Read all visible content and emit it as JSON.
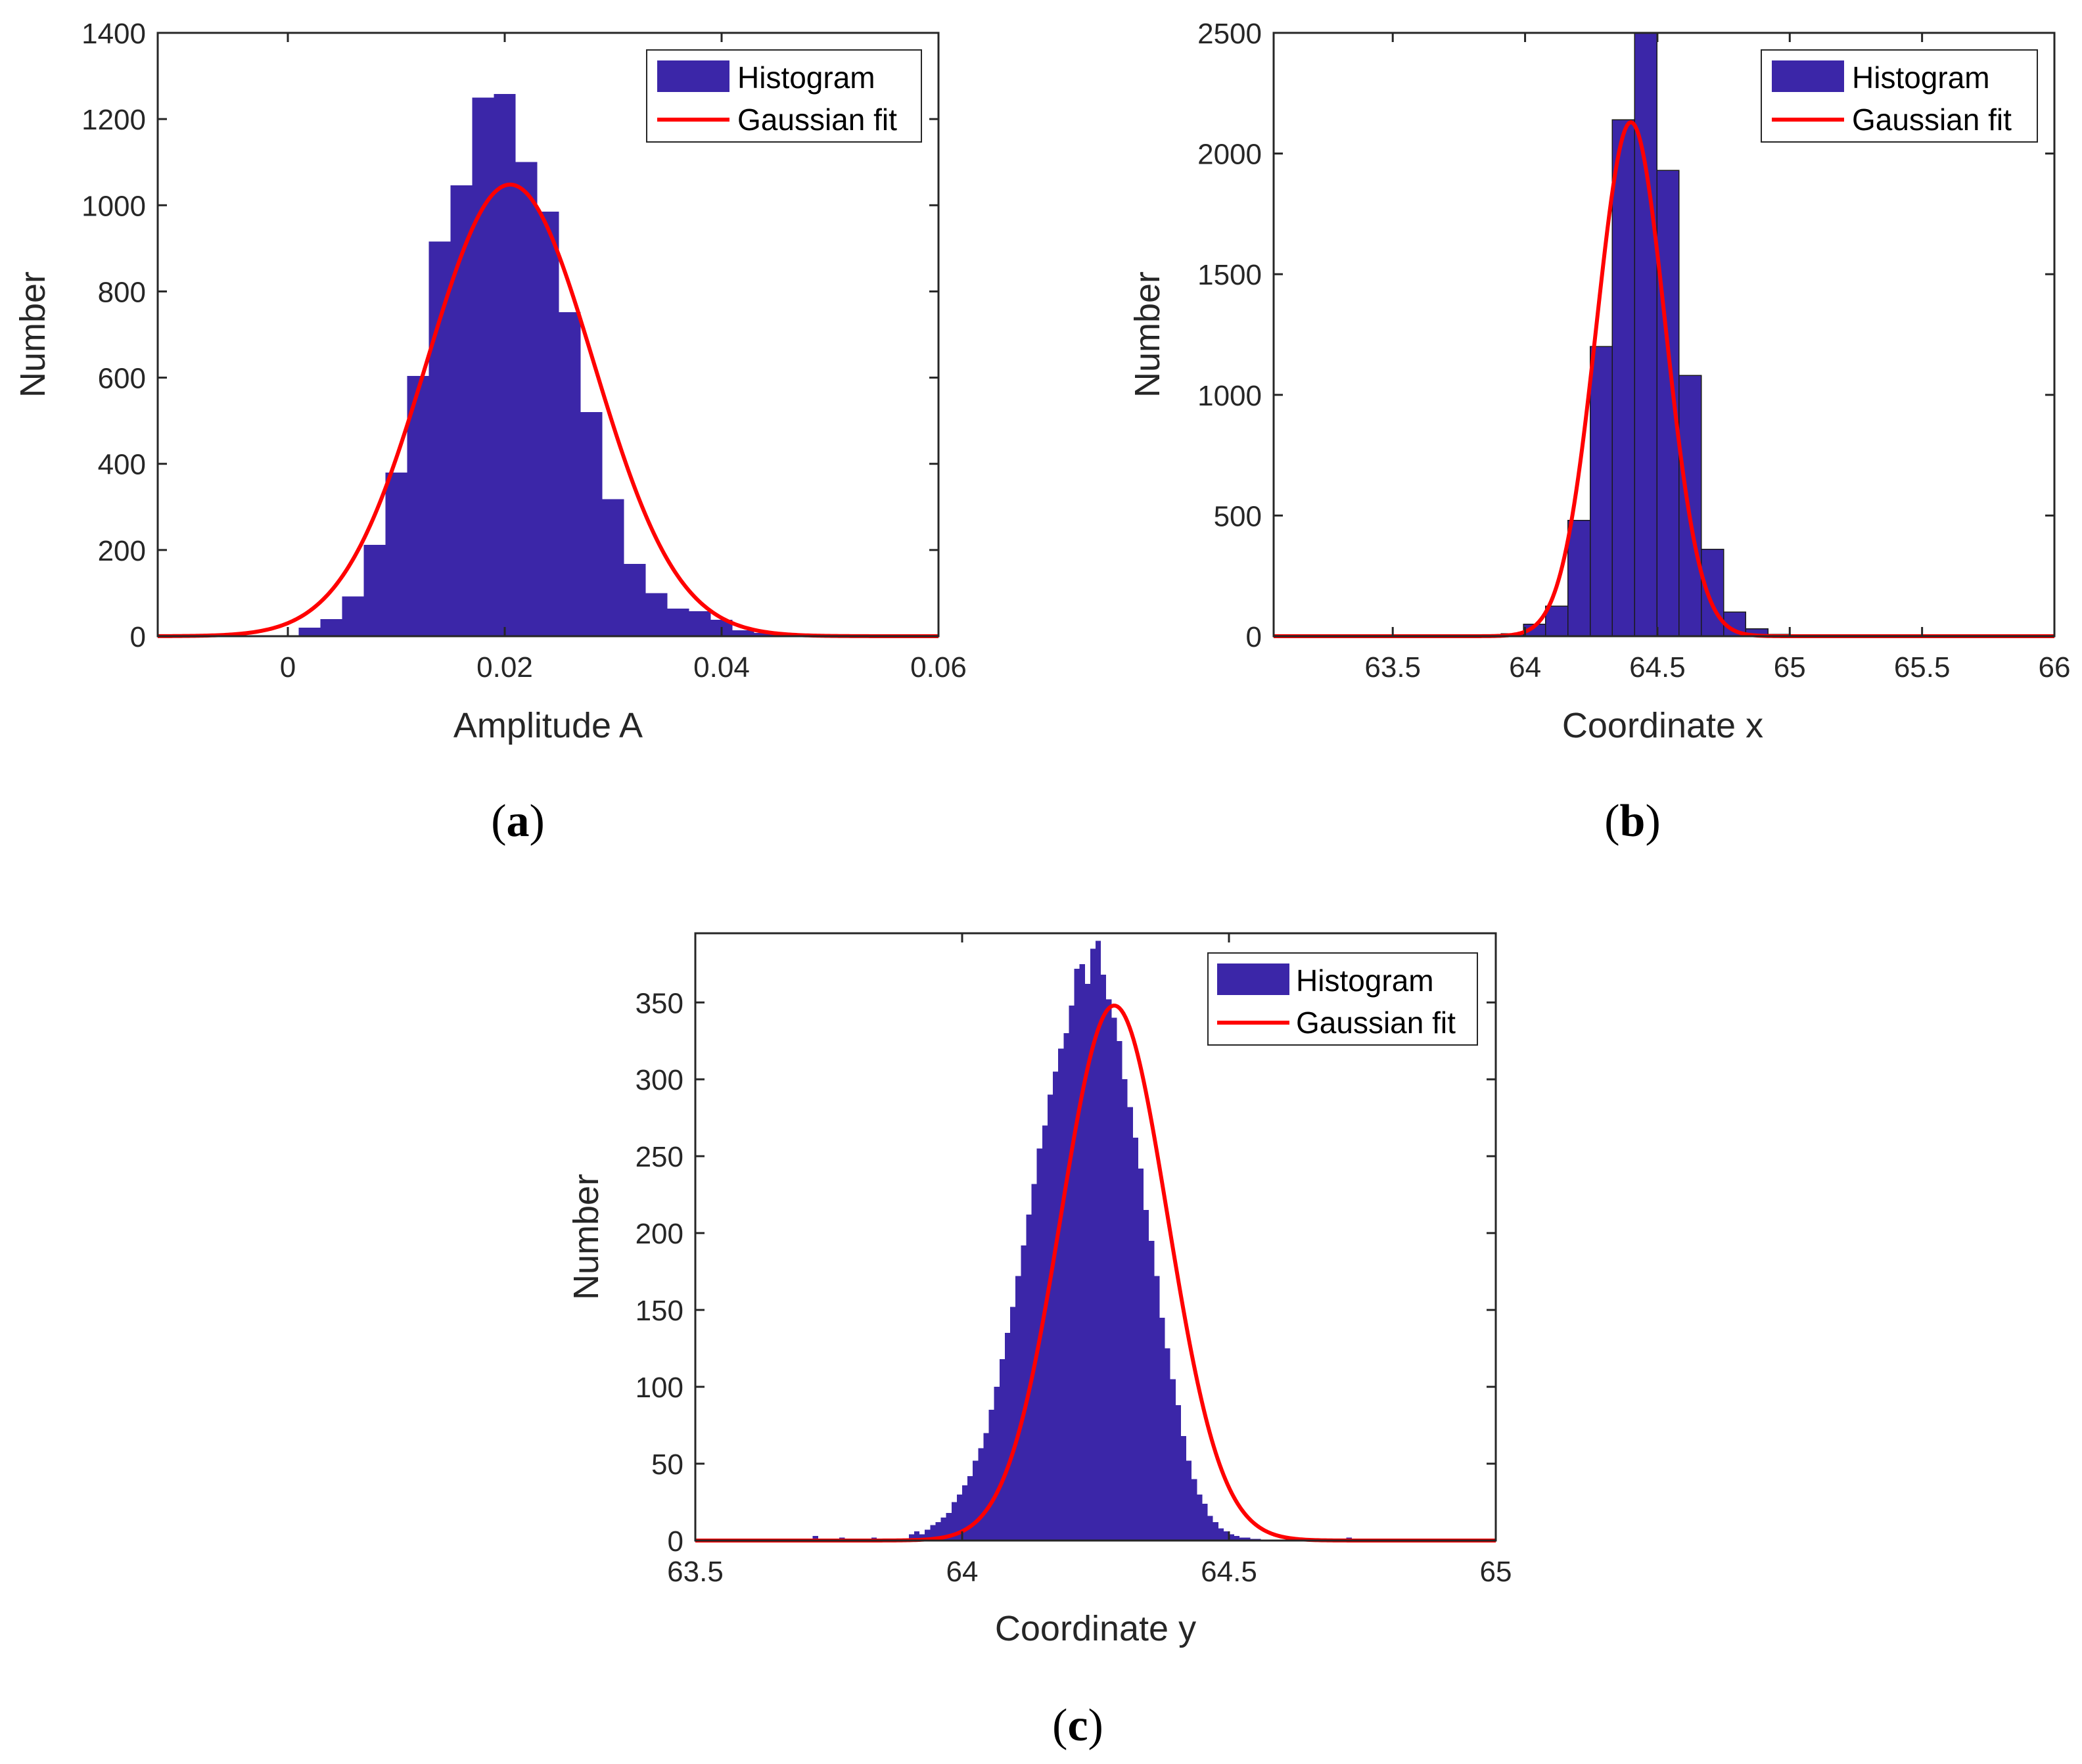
{
  "colors": {
    "histogram": "#3B26A8",
    "fit": "#FF0000",
    "axis": "#262626"
  },
  "chart_data": [
    {
      "id": "a",
      "type": "histogram",
      "caption_letter": "a",
      "xlabel": "Amplitude A",
      "ylabel": "Number",
      "xlim": [
        -0.012,
        0.06
      ],
      "ylim": [
        0,
        1400
      ],
      "xticks": [
        0,
        0.02,
        0.04,
        0.06
      ],
      "xtick_labels": [
        "0",
        "0.02",
        "0.04",
        "0.06"
      ],
      "yticks": [
        0,
        200,
        400,
        600,
        800,
        1000,
        1200,
        1400
      ],
      "ytick_labels": [
        "0",
        "200",
        "400",
        "600",
        "800",
        "1000",
        "1200",
        "1400"
      ],
      "legend": {
        "histogram": "Histogram",
        "fit": "Gaussian fit",
        "position": "top-right"
      },
      "bin_start": 0.001,
      "bin_width": 0.002,
      "counts": [
        20,
        40,
        92,
        212,
        380,
        604,
        916,
        1046,
        1250,
        1258,
        1100,
        985,
        752,
        520,
        318,
        168,
        100,
        64,
        58,
        38,
        14,
        8,
        3,
        2
      ],
      "fit": {
        "amplitude": 1048,
        "mean": 0.0205,
        "sigma": 0.0077
      }
    },
    {
      "id": "b",
      "type": "histogram",
      "caption_letter": "b",
      "xlabel": "Coordinate x",
      "ylabel": "Number",
      "xlim": [
        63.05,
        66
      ],
      "ylim": [
        0,
        2500
      ],
      "xticks": [
        63.5,
        64,
        64.5,
        65,
        65.5,
        66
      ],
      "xtick_labels": [
        "63.5",
        "64",
        "64.5",
        "65",
        "65.5",
        "66"
      ],
      "yticks": [
        0,
        500,
        1000,
        1500,
        2000,
        2500
      ],
      "yticks_labels": [
        "0",
        "500",
        "1000",
        "1500",
        "2000",
        "2500"
      ],
      "ytick_labels": [
        "0",
        "500",
        "1000",
        "1500",
        "2000",
        "2500"
      ],
      "legend": {
        "histogram": "Histogram",
        "fit": "Gaussian fit",
        "position": "top-right"
      },
      "bin_start": 63.91,
      "bin_width": 0.084,
      "counts": [
        10,
        50,
        125,
        480,
        1200,
        2140,
        2500,
        1930,
        1080,
        360,
        100,
        30,
        8
      ],
      "fit": {
        "amplitude": 2130,
        "mean": 64.4,
        "sigma": 0.13
      }
    },
    {
      "id": "c",
      "type": "histogram",
      "caption_letter": "c",
      "xlabel": "Coordinate y",
      "ylabel": "Number",
      "xlim": [
        63.5,
        65
      ],
      "ylim": [
        0,
        395
      ],
      "xticks": [
        63.5,
        64,
        64.5,
        65
      ],
      "xtick_labels": [
        "63.5",
        "64",
        "64.5",
        "65"
      ],
      "yticks": [
        0,
        50,
        100,
        150,
        200,
        250,
        300,
        350
      ],
      "ytick_labels": [
        "0",
        "50",
        "100",
        "150",
        "200",
        "250",
        "300",
        "350"
      ],
      "legend": {
        "histogram": "Histogram",
        "fit": "Gaussian fit",
        "position": "top-right"
      },
      "bin_start": 63.9,
      "bin_width": 0.01,
      "counts": [
        4,
        6,
        4,
        7,
        10,
        12,
        15,
        18,
        25,
        30,
        36,
        42,
        52,
        60,
        70,
        85,
        100,
        118,
        135,
        152,
        172,
        192,
        212,
        232,
        255,
        270,
        290,
        305,
        320,
        330,
        348,
        372,
        375,
        362,
        385,
        390,
        368,
        352,
        340,
        325,
        300,
        282,
        262,
        242,
        215,
        195,
        172,
        145,
        125,
        105,
        88,
        68,
        52,
        40,
        30,
        24,
        16,
        12,
        8,
        6,
        4,
        3,
        2,
        2,
        1,
        1
      ],
      "outliers": [
        {
          "x": 63.72,
          "count": 3
        },
        {
          "x": 63.77,
          "count": 2
        },
        {
          "x": 63.83,
          "count": 2
        },
        {
          "x": 64.72,
          "count": 2
        },
        {
          "x": 64.8,
          "count": 1
        }
      ],
      "fit": {
        "amplitude": 348,
        "mean": 64.285,
        "sigma": 0.1
      }
    }
  ]
}
